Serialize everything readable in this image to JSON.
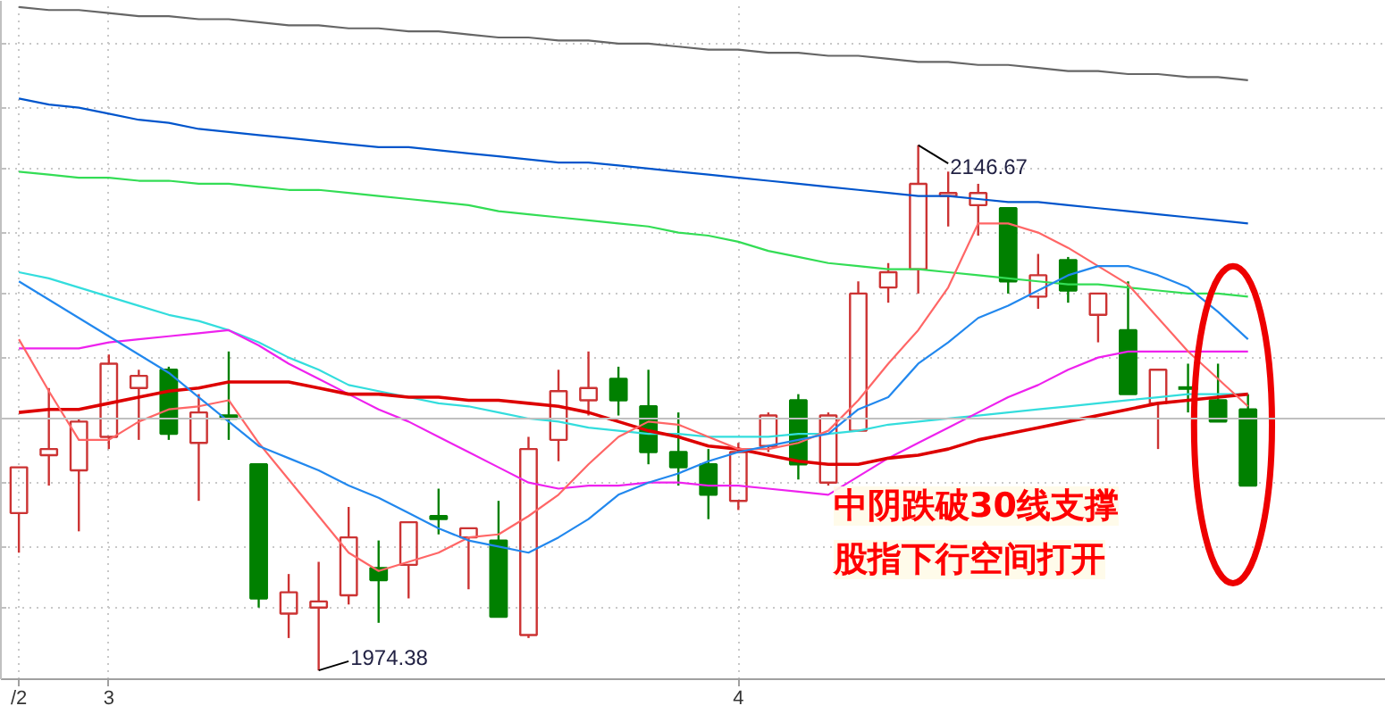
{
  "chart_data": {
    "type": "candlestick",
    "categories": [
      "/2",
      null,
      null,
      "3",
      null,
      null,
      null,
      null,
      null,
      null,
      null,
      null,
      null,
      null,
      null,
      null,
      null,
      null,
      null,
      null,
      null,
      null,
      null,
      null,
      "4",
      null,
      null,
      null,
      null,
      null,
      null,
      null,
      null,
      null,
      null,
      null,
      null,
      null,
      null,
      null,
      null,
      null
    ],
    "ohlc": [
      [
        2026,
        2041,
        2013,
        2041
      ],
      [
        2045,
        2067,
        2035,
        2047
      ],
      [
        2040,
        2057,
        2020,
        2056
      ],
      [
        2051,
        2078,
        2047,
        2075
      ],
      [
        2067,
        2073,
        2050,
        2071
      ],
      [
        2073,
        2074,
        2050,
        2052
      ],
      [
        2049,
        2065,
        2030,
        2059
      ],
      [
        2058,
        2079,
        2050,
        2057
      ],
      [
        2042,
        2042,
        1995,
        1998
      ],
      [
        1993,
        2006,
        1985,
        2000
      ],
      [
        1995,
        2010,
        1974.38,
        1997
      ],
      [
        1999,
        2028,
        1996,
        2018
      ],
      [
        2008,
        2017,
        1990,
        2004
      ],
      [
        2009,
        2023,
        1998,
        2023
      ],
      [
        2025,
        2034,
        2019,
        2024
      ],
      [
        2018,
        2021,
        2001,
        2021
      ],
      [
        2017,
        2030,
        1992,
        1992
      ],
      [
        1986,
        2051,
        1985,
        2047
      ],
      [
        2050,
        2073,
        2043,
        2066
      ],
      [
        2063,
        2079,
        2058,
        2067
      ],
      [
        2070,
        2074,
        2058,
        2063
      ],
      [
        2061,
        2073,
        2042,
        2046
      ],
      [
        2046,
        2059,
        2035,
        2041
      ],
      [
        2042,
        2047,
        2024,
        2032
      ],
      [
        2030,
        2049,
        2027,
        2046
      ],
      [
        2048,
        2059,
        2046,
        2058
      ],
      [
        2063,
        2065,
        2037,
        2042
      ],
      [
        2036,
        2059,
        2035,
        2058
      ],
      [
        2053,
        2102,
        2053,
        2098
      ],
      [
        2100,
        2108,
        2095,
        2105
      ],
      [
        2106,
        2146.67,
        2098,
        2134
      ],
      [
        2130,
        2138,
        2120,
        2131
      ],
      [
        2127,
        2134,
        2117,
        2131
      ],
      [
        2126,
        2126,
        2098,
        2102
      ],
      [
        2097,
        2111,
        2093,
        2104
      ],
      [
        2109,
        2110,
        2095,
        2099
      ],
      [
        2091,
        2098,
        2082,
        2098
      ],
      [
        2086,
        2102,
        2065,
        2065
      ],
      [
        2062,
        2073,
        2047,
        2073
      ],
      [
        2067,
        2075,
        2059,
        2067
      ],
      [
        2063,
        2075,
        2056,
        2056
      ],
      [
        2060,
        2065,
        2035,
        2035
      ]
    ],
    "colors": [
      "#cc3333",
      "#cc3333",
      "#cc3333",
      "#cc3333",
      "#cc3333",
      "#008000",
      "#cc3333",
      "#008000",
      "#008000",
      "#cc3333",
      "#cc3333",
      "#cc3333",
      "#008000",
      "#cc3333",
      "#008000",
      "#cc3333",
      "#008000",
      "#cc3333",
      "#cc3333",
      "#cc3333",
      "#008000",
      "#008000",
      "#008000",
      "#008000",
      "#cc3333",
      "#cc3333",
      "#008000",
      "#cc3333",
      "#cc3333",
      "#cc3333",
      "#cc3333",
      "#cc3333",
      "#cc3333",
      "#008000",
      "#cc3333",
      "#008000",
      "#cc3333",
      "#008000",
      "#cc3333",
      "#008000",
      "#008000",
      "#008000"
    ],
    "series": [
      {
        "type": "line",
        "color": "#666666",
        "values": [
          2192,
          2191,
          2191,
          2190,
          2189,
          2189,
          2188,
          2188,
          2187,
          2186,
          2186,
          2185,
          2185,
          2184,
          2184,
          2183,
          2182,
          2182,
          2181,
          2181,
          2180,
          2180,
          2179,
          2178,
          2178,
          2177,
          2177,
          2176,
          2176,
          2175,
          2174,
          2174,
          2173,
          2173,
          2172,
          2171,
          2171,
          2170,
          2170,
          2169,
          2169,
          2168
        ]
      },
      {
        "type": "line",
        "color": "#0055cc",
        "values": [
          2162,
          2160,
          2159,
          2157,
          2155,
          2154,
          2152,
          2151,
          2150,
          2149,
          2148,
          2147,
          2146,
          2146,
          2145,
          2144,
          2143,
          2142,
          2141,
          2141,
          2140,
          2139,
          2138,
          2137,
          2136,
          2135,
          2134,
          2133,
          2132,
          2131,
          2130,
          2130,
          2129,
          2128,
          2128,
          2127,
          2126,
          2125,
          2124,
          2123,
          2122,
          2121
        ]
      },
      {
        "type": "line",
        "color": "#33dd55",
        "values": [
          2138,
          2137,
          2136,
          2136,
          2135,
          2135,
          2134,
          2134,
          2133,
          2132,
          2132,
          2131,
          2130,
          2129,
          2128,
          2127,
          2125,
          2124,
          2123,
          2122,
          2121,
          2120,
          2118,
          2117,
          2115,
          2112,
          2110,
          2108,
          2107,
          2106,
          2106,
          2105,
          2104,
          2103,
          2102,
          2101,
          2101,
          2100,
          2099,
          2098,
          2098,
          2097
        ]
      },
      {
        "type": "line",
        "color": "#33dddd",
        "values": [
          2105,
          2103,
          2100,
          2097,
          2094,
          2091,
          2089,
          2086,
          2082,
          2077,
          2073,
          2068,
          2066,
          2064,
          2062,
          2061,
          2059,
          2057,
          2056,
          2054,
          2053,
          2052,
          2052,
          2051,
          2051,
          2051,
          2052,
          2052,
          2053,
          2055,
          2056,
          2057,
          2058,
          2059,
          2060,
          2061,
          2062,
          2063,
          2064,
          2065,
          2065,
          2065
        ]
      },
      {
        "type": "line",
        "color": "#ee22ee",
        "values": [
          2080,
          2080,
          2080,
          2082,
          2083,
          2084,
          2085,
          2086,
          2081,
          2075,
          2070,
          2065,
          2060,
          2056,
          2051,
          2046,
          2041,
          2036,
          2034,
          2035,
          2035,
          2036,
          2036,
          2035,
          2035,
          2034,
          2033,
          2032,
          2038,
          2044,
          2049,
          2054,
          2059,
          2064,
          2068,
          2073,
          2077,
          2079,
          2079,
          2079,
          2079,
          2079
        ]
      },
      {
        "type": "line",
        "color": "#dd0000",
        "values": [
          2059,
          2060,
          2060,
          2062,
          2064,
          2066,
          2067,
          2069,
          2069,
          2069,
          2067,
          2065,
          2065,
          2064,
          2064,
          2063,
          2063,
          2062,
          2061,
          2059,
          2056,
          2053,
          2051,
          2048,
          2047,
          2045,
          2043,
          2042,
          2042,
          2044,
          2045,
          2047,
          2050,
          2052,
          2054,
          2056,
          2058,
          2060,
          2062,
          2063,
          2064,
          2065
        ]
      },
      {
        "type": "line",
        "color": "#ff6666",
        "values": [
          2083,
          2066,
          2050,
          2050,
          2056,
          2060,
          2061,
          2063,
          2049,
          2037,
          2025,
          2013,
          2007,
          2010,
          2013,
          2018,
          2019,
          2025,
          2032,
          2042,
          2051,
          2056,
          2055,
          2051,
          2047,
          2047,
          2049,
          2053,
          2063,
          2075,
          2086,
          2100,
          2121,
          2121,
          2118,
          2113,
          2107,
          2101,
          2090,
          2079,
          2070,
          2061
        ]
      },
      {
        "type": "line",
        "color": "#2288ee",
        "values": [
          2102,
          2096,
          2090,
          2084,
          2078,
          2072,
          2064,
          2056,
          2048,
          2044,
          2040,
          2035,
          2031,
          2026,
          2021,
          2017,
          2015,
          2013,
          2018,
          2024,
          2032,
          2036,
          2039,
          2043,
          2046,
          2048,
          2050,
          2052,
          2060,
          2064,
          2075,
          2082,
          2090,
          2094,
          2099,
          2104,
          2107,
          2107,
          2104,
          2100,
          2092,
          2083
        ]
      }
    ],
    "ylim": [
      1971.5,
      2194
    ],
    "yticks": [
      {
        "value": 2180,
        "label": null
      },
      {
        "value": 2159,
        "label": null
      },
      {
        "value": 2139,
        "label": null
      },
      {
        "value": 2118,
        "label": null
      },
      {
        "value": 2098,
        "label": null
      },
      {
        "value": 2077,
        "label": null
      },
      {
        "value": 2036,
        "label": null
      },
      {
        "value": 2015,
        "label": null
      },
      {
        "value": 1995,
        "label": null
      }
    ],
    "tick_labels": "x",
    "grid": true,
    "ref_lines": [
      {
        "axis": "y",
        "value": 2057,
        "label": null,
        "color": "#c0c0c0"
      }
    ],
    "annotations": [
      "2146.67",
      "1974.38",
      "中阴跌破30线支撑",
      "股指下行空间打开"
    ]
  }
}
